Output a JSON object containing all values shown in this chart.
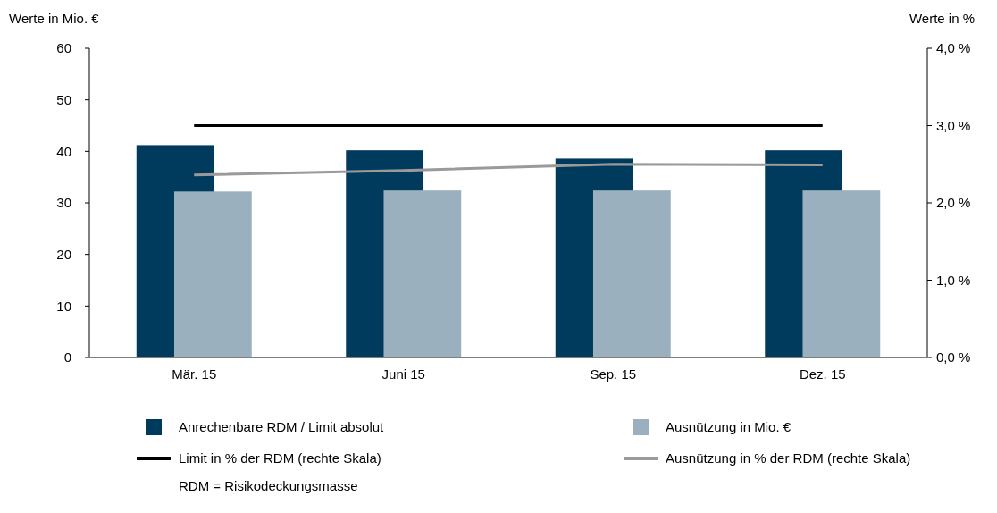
{
  "chart_data": {
    "type": "bar",
    "ylabel": "Werte in Mio. €",
    "y2label": "Werte in %",
    "categories": [
      "Mär. 15",
      "Juni 15",
      "Sep. 15",
      "Dez. 15"
    ],
    "series": [
      {
        "name": "Anrechenbare RDM / Limit absolut",
        "color": "#003a5d",
        "values": [
          41.2,
          40.2,
          38.6,
          40.2
        ]
      },
      {
        "name": "Ausnützung in Mio. €",
        "color": "#9ab0be",
        "values": [
          32.2,
          32.4,
          32.4,
          32.4
        ]
      },
      {
        "name": "Limit in % der RDM (rechte Skala)",
        "type": "line",
        "axis": "y2",
        "color": "#000000",
        "values": [
          3.0,
          3.0,
          3.0,
          3.0
        ]
      },
      {
        "name": "Ausnützung in % der RDM (rechte Skala)",
        "type": "line",
        "axis": "y2",
        "color": "#9a9a9a",
        "values": [
          2.36,
          2.42,
          2.5,
          2.49
        ]
      }
    ],
    "ylim": [
      0,
      60
    ],
    "yticks": [
      0,
      10,
      20,
      30,
      40,
      50,
      60
    ],
    "y2lim": [
      0,
      4
    ],
    "y2ticks": [
      {
        "value": 0,
        "label": "0,0 %"
      },
      {
        "value": 1,
        "label": "1,0 %"
      },
      {
        "value": 2,
        "label": "2,0 %"
      },
      {
        "value": 3,
        "label": "3,0 %"
      },
      {
        "value": 4,
        "label": "4,0 %"
      }
    ],
    "legend": "bottom",
    "grid": false,
    "marker": "none",
    "line_style": "solid",
    "annotations": [
      "RDM = Risikodeckungsmasse"
    ]
  }
}
